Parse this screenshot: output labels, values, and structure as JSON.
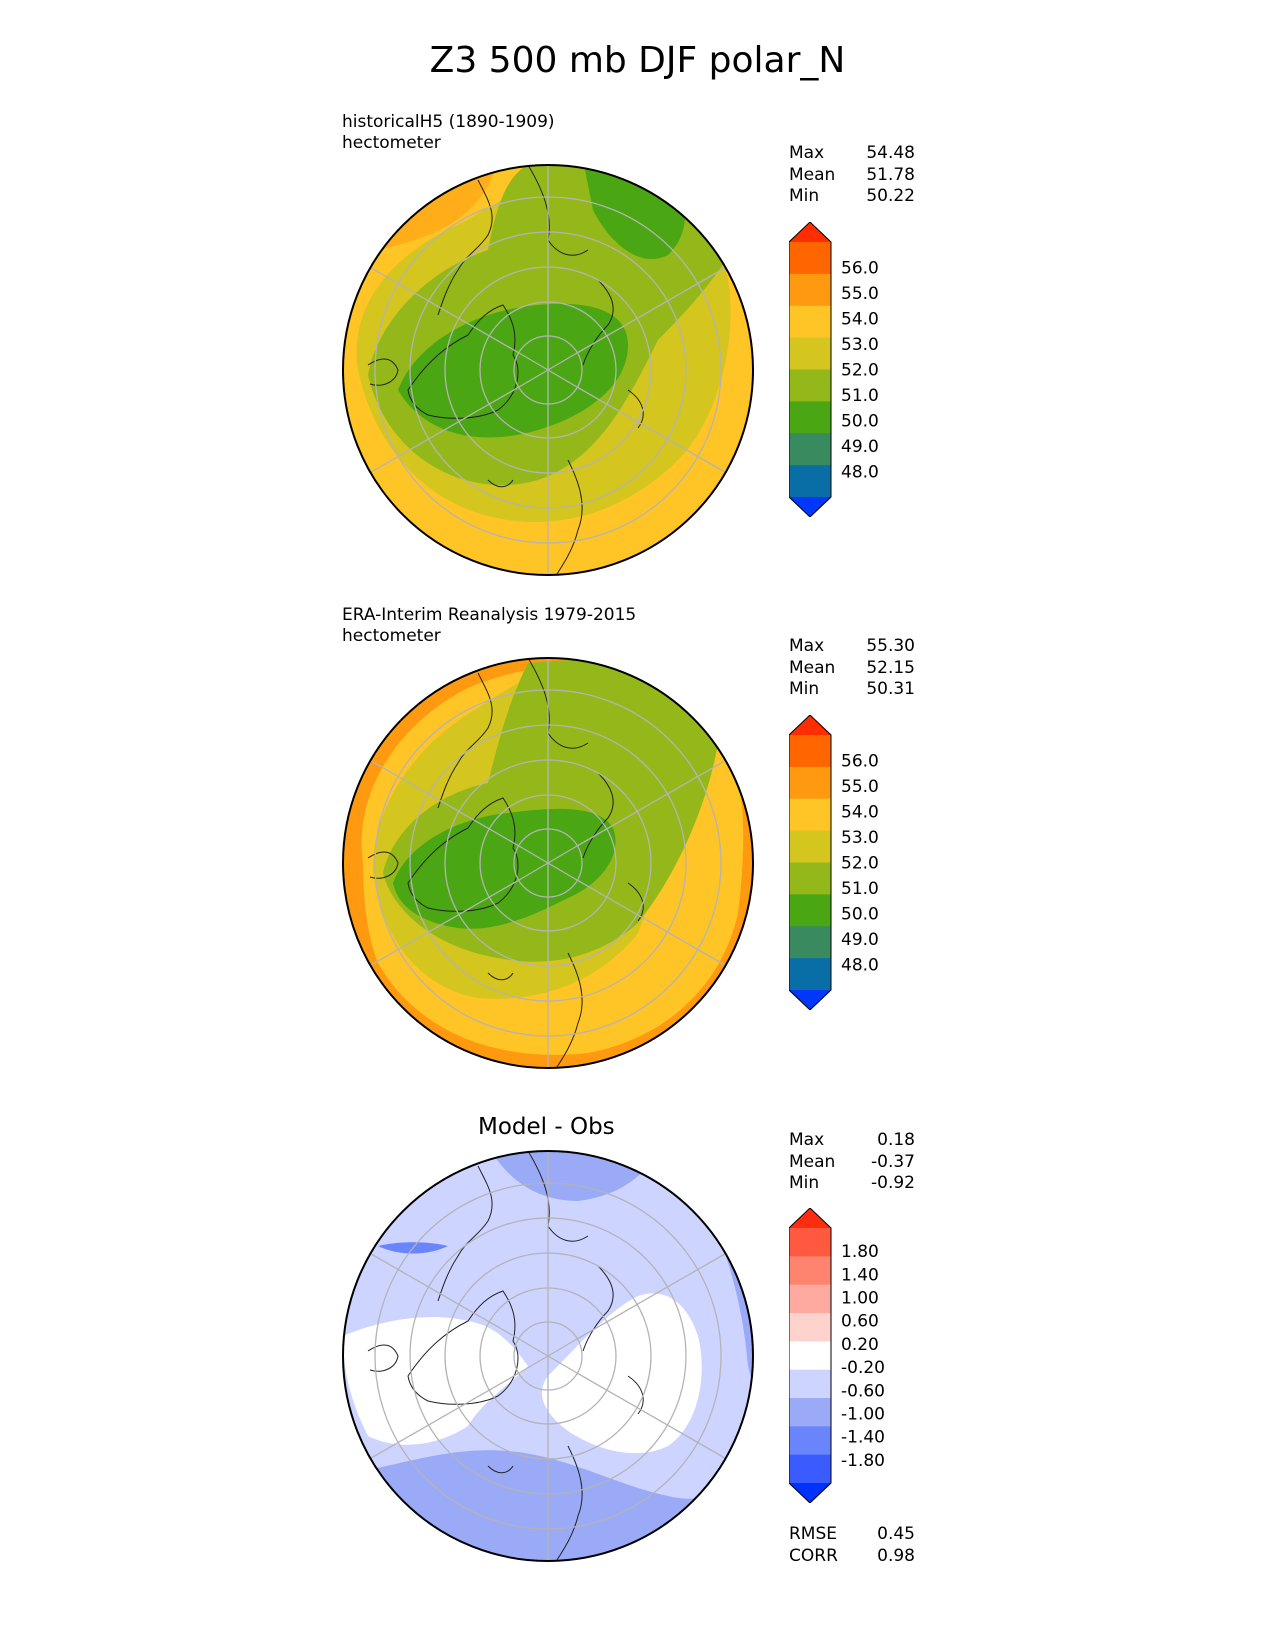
{
  "title": "Z3 500 mb DJF polar_N",
  "panels": [
    {
      "title_lines": [
        "historicalH5 (1890-1909)",
        "hectometer"
      ],
      "stats": [
        {
          "label": "Max",
          "value": "54.48"
        },
        {
          "label": "Mean",
          "value": "51.78"
        },
        {
          "label": "Min",
          "value": "50.22"
        }
      ]
    },
    {
      "title_lines": [
        "ERA-Interim Reanalysis 1979-2015",
        "hectometer"
      ],
      "stats": [
        {
          "label": "Max",
          "value": "55.30"
        },
        {
          "label": "Mean",
          "value": "52.15"
        },
        {
          "label": "Min",
          "value": "50.31"
        }
      ]
    },
    {
      "title": "Model - Obs",
      "stats": [
        {
          "label": "Max",
          "value": "0.18"
        },
        {
          "label": "Mean",
          "value": "-0.37"
        },
        {
          "label": "Min",
          "value": "-0.92"
        }
      ],
      "extra_stats": [
        {
          "label": "RMSE",
          "value": "0.45"
        },
        {
          "label": "CORR",
          "value": "0.98"
        }
      ]
    }
  ],
  "colorbars": {
    "field": {
      "labels": [
        "56.0",
        "55.0",
        "54.0",
        "53.0",
        "52.0",
        "51.0",
        "50.0",
        "49.0",
        "48.0"
      ],
      "colors": [
        "#ff2d00",
        "#ff6600",
        "#ff9a10",
        "#ffc425",
        "#d4c51f",
        "#94b81a",
        "#4aa612",
        "#3a8a60",
        "#0a6ea6",
        "#0037ff"
      ]
    },
    "diff": {
      "labels": [
        "1.80",
        "1.40",
        "1.00",
        "0.60",
        "0.20",
        "-0.20",
        "-0.60",
        "-1.00",
        "-1.40",
        "-1.80"
      ],
      "colors": [
        "#ff2d10",
        "#ff5a3f",
        "#ff8470",
        "#ffaaa0",
        "#ffd2cc",
        "#ffffff",
        "#ccd4ff",
        "#9aaaf6",
        "#6a84fb",
        "#3a5cff",
        "#0032ff"
      ]
    }
  },
  "chart_data": [
    {
      "type": "heatmap",
      "title": "historicalH5 (1890-1909)",
      "units": "hectometer",
      "levels": [
        48.0,
        49.0,
        50.0,
        51.0,
        52.0,
        53.0,
        54.0,
        55.0,
        56.0
      ],
      "stats": {
        "max": 54.48,
        "mean": 51.78,
        "min": 50.22
      },
      "projection": "north polar stereographic",
      "grid": true,
      "zones": [
        {
          "value": 53.5,
          "position": "outer ring"
        },
        {
          "value": 52.5,
          "position": "mid latitudes"
        },
        {
          "value": 51.5,
          "position": "high latitudes"
        },
        {
          "value": 50.5,
          "position": "polar vortex core"
        }
      ]
    },
    {
      "type": "heatmap",
      "title": "ERA-Interim Reanalysis 1979-2015",
      "units": "hectometer",
      "levels": [
        48.0,
        49.0,
        50.0,
        51.0,
        52.0,
        53.0,
        54.0,
        55.0,
        56.0
      ],
      "stats": {
        "max": 55.3,
        "mean": 52.15,
        "min": 50.31
      },
      "projection": "north polar stereographic",
      "grid": true,
      "zones": [
        {
          "value": 54.5,
          "position": "outer ring"
        },
        {
          "value": 53.5,
          "position": "lower mid latitudes"
        },
        {
          "value": 52.5,
          "position": "mid latitudes"
        },
        {
          "value": 51.5,
          "position": "high latitudes"
        },
        {
          "value": 50.5,
          "position": "polar vortex core"
        }
      ]
    },
    {
      "type": "heatmap",
      "title": "Model - Obs",
      "levels": [
        -1.8,
        -1.4,
        -1.0,
        -0.6,
        -0.2,
        0.2,
        0.6,
        1.0,
        1.4,
        1.8
      ],
      "stats": {
        "max": 0.18,
        "mean": -0.37,
        "min": -0.92,
        "rmse": 0.45,
        "corr": 0.98
      },
      "projection": "north polar stereographic",
      "grid": true,
      "zones": [
        {
          "value": -0.4,
          "position": "background"
        },
        {
          "value": -0.8,
          "position": "southern rim and Pacific"
        },
        {
          "value": 0.0,
          "position": "band across pole"
        }
      ]
    }
  ]
}
